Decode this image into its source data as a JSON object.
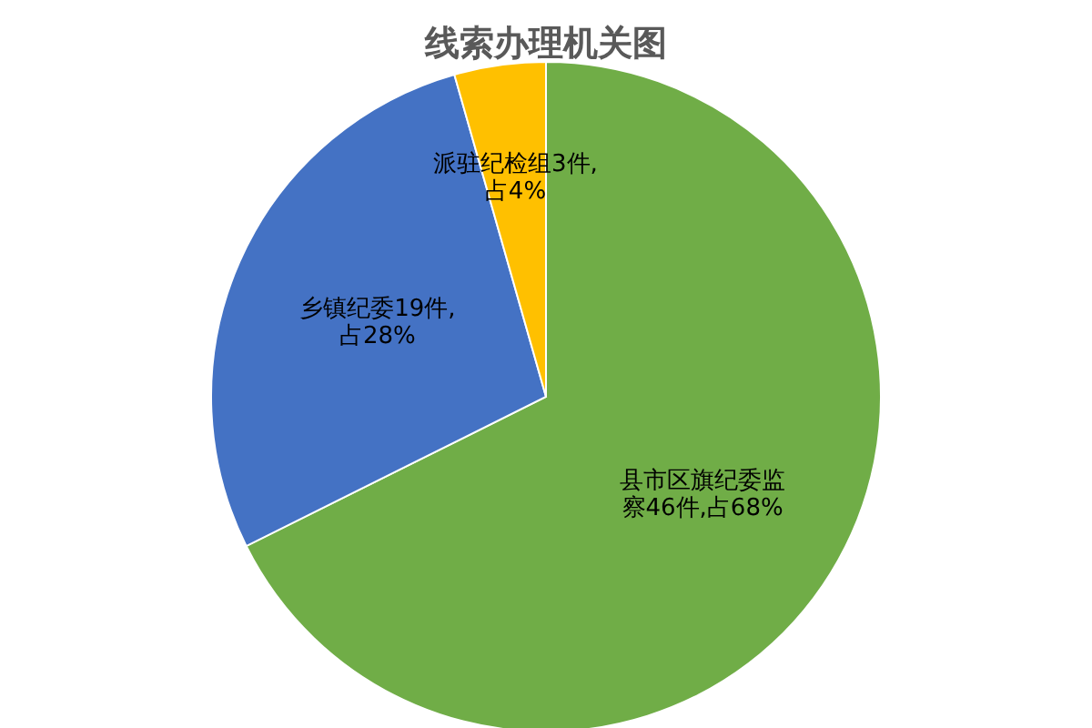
{
  "chart_data": {
    "type": "pie",
    "title": "线索办理机关图",
    "categories": [
      "县市区旗纪委监察46件,占68%",
      "乡镇纪委19件,占28%",
      "派驻纪检组3件,占4%"
    ],
    "values": [
      46,
      19,
      3
    ],
    "colors": [
      "#70ad47",
      "#4472c4",
      "#ffc000"
    ],
    "legend": false
  }
}
